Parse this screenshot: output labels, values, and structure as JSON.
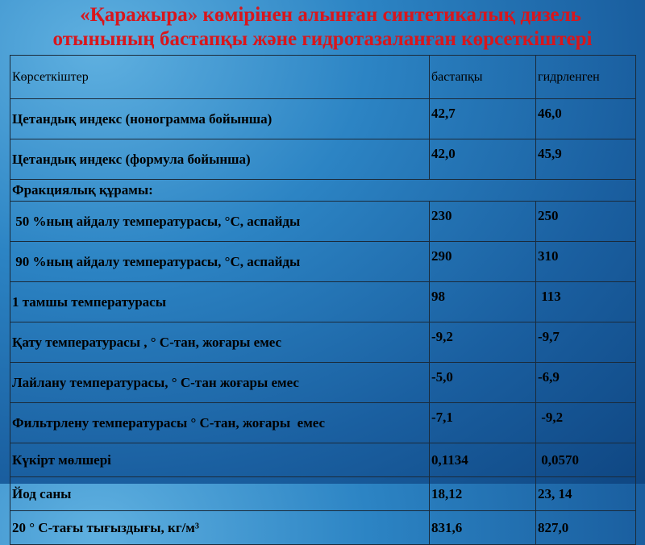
{
  "title": [
    "«Қаражыра» көмірінен алынған синтетикалық дизель",
    "отынының бастапқы және гидротазаланған көрсеткіштері"
  ],
  "table": {
    "header": [
      "Көрсеткіштер",
      "бастапқы",
      "гидрленген"
    ],
    "rows": [
      [
        "Цетандық индекс (нонограмма бойынша)",
        "42,7",
        "46,0"
      ],
      [
        "Цетандық индекс (формула бойынша)",
        "42,0",
        "45,9"
      ],
      [
        "Фракциялық құрамы:"
      ],
      [
        " 50 %ның айдалу температурасы, °С, аспайды",
        "230",
        "250"
      ],
      [
        " 90 %ның айдалу температурасы, °С, аспайды",
        "290",
        "310"
      ],
      [
        "1 тамшы температурасы",
        "98",
        " 113"
      ],
      [
        "Қату температурасы , ° С-тан, жоғары емес",
        "-9,2",
        "-9,7"
      ],
      [
        "Лайлану температурасы, ° С-тан жоғары емес",
        "-5,0",
        "-6,9"
      ],
      [
        "Фильтрлену температурасы ° С-тан, жоғары  емес",
        "-7,1",
        " -9,2"
      ],
      [
        "Күкірт мөлшері",
        "0,1134",
        " 0,0570"
      ],
      [
        "Йод саны",
        "18,12",
        "23, 14"
      ],
      [
        "20 ° С-тағы тығыздығы, кг/м³",
        "831,6",
        "827,0"
      ]
    ]
  }
}
